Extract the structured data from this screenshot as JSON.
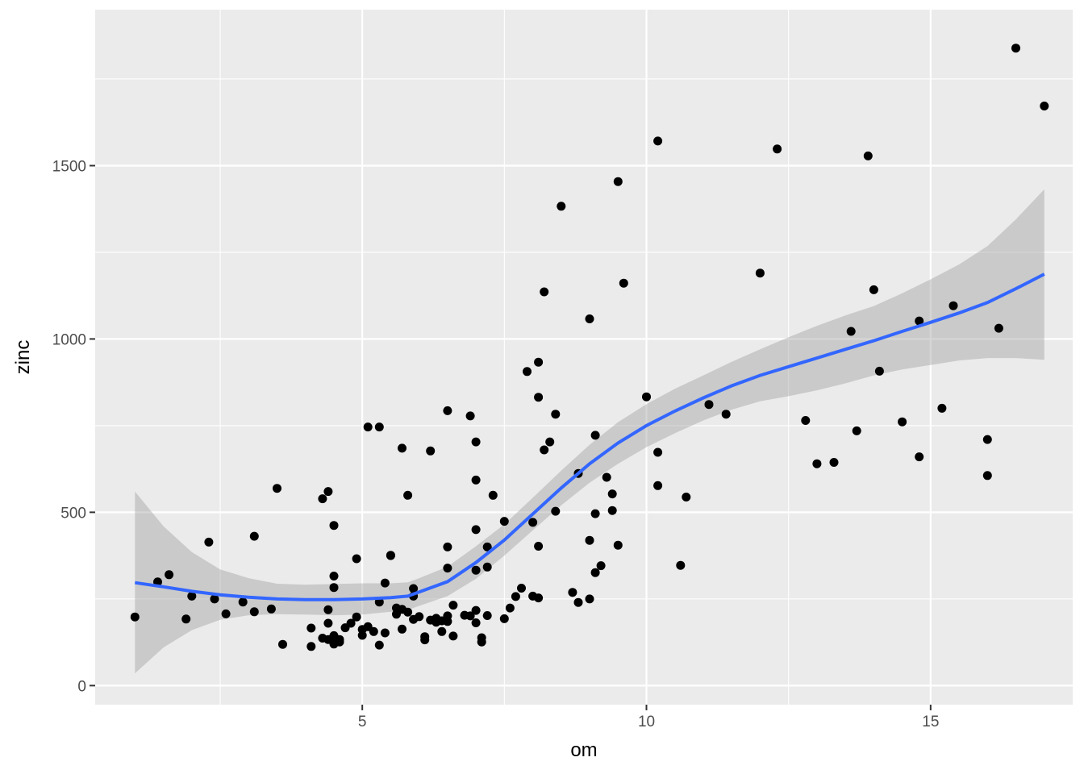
{
  "chart_data": {
    "type": "scatter",
    "title": "",
    "xlabel": "om",
    "ylabel": "zinc",
    "xlim": [
      0.3,
      17.5
    ],
    "ylim": [
      -55,
      1950
    ],
    "x_ticks": [
      5,
      10,
      15
    ],
    "x_tick_labels": [
      "5",
      "10",
      "15"
    ],
    "y_ticks": [
      0,
      500,
      1000,
      1500
    ],
    "y_tick_labels": [
      "0",
      "500",
      "1000",
      "1500"
    ],
    "grid": true,
    "legend": "none",
    "colors": {
      "panel_background": "#ebebeb",
      "grid": "#ffffff",
      "points": "#000000",
      "smooth_line": "#3366ff",
      "confidence_band": "#999999"
    },
    "points": [
      [
        1.0,
        198
      ],
      [
        1.4,
        299
      ],
      [
        1.6,
        320
      ],
      [
        1.9,
        192
      ],
      [
        2.0,
        258
      ],
      [
        2.3,
        414
      ],
      [
        2.4,
        250
      ],
      [
        2.6,
        207
      ],
      [
        2.9,
        241
      ],
      [
        3.1,
        431
      ],
      [
        3.1,
        213
      ],
      [
        3.4,
        221
      ],
      [
        3.5,
        569
      ],
      [
        3.6,
        119
      ],
      [
        4.1,
        166
      ],
      [
        4.1,
        113
      ],
      [
        4.3,
        539
      ],
      [
        4.3,
        137
      ],
      [
        4.4,
        560
      ],
      [
        4.4,
        219
      ],
      [
        4.4,
        180
      ],
      [
        4.4,
        133
      ],
      [
        4.5,
        462
      ],
      [
        4.5,
        316
      ],
      [
        4.5,
        283
      ],
      [
        4.5,
        144
      ],
      [
        4.5,
        120
      ],
      [
        4.6,
        126
      ],
      [
        4.6,
        133
      ],
      [
        4.7,
        167
      ],
      [
        4.8,
        180
      ],
      [
        4.9,
        366
      ],
      [
        4.9,
        198
      ],
      [
        5.0,
        162
      ],
      [
        5.0,
        145
      ],
      [
        5.1,
        746
      ],
      [
        5.1,
        170
      ],
      [
        5.2,
        156
      ],
      [
        5.3,
        746
      ],
      [
        5.3,
        241
      ],
      [
        5.3,
        117
      ],
      [
        5.4,
        296
      ],
      [
        5.4,
        152
      ],
      [
        5.5,
        375
      ],
      [
        5.5,
        376
      ],
      [
        5.6,
        224
      ],
      [
        5.6,
        206
      ],
      [
        5.7,
        685
      ],
      [
        5.7,
        220
      ],
      [
        5.7,
        163
      ],
      [
        5.8,
        549
      ],
      [
        5.8,
        212
      ],
      [
        5.9,
        280
      ],
      [
        5.9,
        258
      ],
      [
        5.9,
        191
      ],
      [
        6.0,
        199
      ],
      [
        6.1,
        141
      ],
      [
        6.1,
        132
      ],
      [
        6.2,
        677
      ],
      [
        6.2,
        189
      ],
      [
        6.3,
        194
      ],
      [
        6.3,
        183
      ],
      [
        6.4,
        187
      ],
      [
        6.4,
        156
      ],
      [
        6.5,
        793
      ],
      [
        6.5,
        400
      ],
      [
        6.5,
        339
      ],
      [
        6.5,
        201
      ],
      [
        6.5,
        185
      ],
      [
        6.6,
        232
      ],
      [
        6.6,
        143
      ],
      [
        6.8,
        203
      ],
      [
        6.9,
        778
      ],
      [
        6.9,
        201
      ],
      [
        7.0,
        703
      ],
      [
        7.0,
        593
      ],
      [
        7.0,
        450
      ],
      [
        7.0,
        333
      ],
      [
        7.0,
        217
      ],
      [
        7.0,
        181
      ],
      [
        7.1,
        138
      ],
      [
        7.1,
        126
      ],
      [
        7.2,
        400
      ],
      [
        7.2,
        342
      ],
      [
        7.2,
        202
      ],
      [
        7.3,
        549
      ],
      [
        7.5,
        474
      ],
      [
        7.5,
        193
      ],
      [
        7.6,
        224
      ],
      [
        7.7,
        257
      ],
      [
        7.8,
        281
      ],
      [
        7.9,
        906
      ],
      [
        8.0,
        471
      ],
      [
        8.0,
        258
      ],
      [
        8.1,
        933
      ],
      [
        8.1,
        832
      ],
      [
        8.1,
        402
      ],
      [
        8.1,
        253
      ],
      [
        8.2,
        1136
      ],
      [
        8.2,
        680
      ],
      [
        8.3,
        703
      ],
      [
        8.4,
        783
      ],
      [
        8.4,
        503
      ],
      [
        8.5,
        1383
      ],
      [
        8.7,
        269
      ],
      [
        8.8,
        612
      ],
      [
        8.8,
        240
      ],
      [
        9.0,
        1058
      ],
      [
        9.0,
        419
      ],
      [
        9.0,
        250
      ],
      [
        9.1,
        722
      ],
      [
        9.1,
        496
      ],
      [
        9.1,
        326
      ],
      [
        9.2,
        346
      ],
      [
        9.3,
        601
      ],
      [
        9.4,
        553
      ],
      [
        9.4,
        505
      ],
      [
        9.5,
        1454
      ],
      [
        9.5,
        405
      ],
      [
        9.6,
        1161
      ],
      [
        10.0,
        833
      ],
      [
        10.2,
        1571
      ],
      [
        10.2,
        673
      ],
      [
        10.2,
        577
      ],
      [
        10.6,
        347
      ],
      [
        10.7,
        544
      ],
      [
        11.1,
        811
      ],
      [
        11.4,
        783
      ],
      [
        12.0,
        1190
      ],
      [
        12.3,
        1548
      ],
      [
        12.8,
        765
      ],
      [
        13.0,
        640
      ],
      [
        13.3,
        644
      ],
      [
        13.6,
        1022
      ],
      [
        13.7,
        735
      ],
      [
        13.9,
        1528
      ],
      [
        14.0,
        1142
      ],
      [
        14.1,
        907
      ],
      [
        14.5,
        761
      ],
      [
        14.8,
        1052
      ],
      [
        14.8,
        660
      ],
      [
        15.2,
        800
      ],
      [
        15.4,
        1096
      ],
      [
        16.0,
        710
      ],
      [
        16.0,
        606
      ],
      [
        16.2,
        1031
      ],
      [
        16.5,
        1839
      ],
      [
        17.0,
        1672
      ]
    ],
    "smooth": {
      "x": [
        1.0,
        1.5,
        2.0,
        2.5,
        3.0,
        3.5,
        4.0,
        4.5,
        5.0,
        5.5,
        5.8,
        6.0,
        6.5,
        7.0,
        7.5,
        8.0,
        8.5,
        9.0,
        9.5,
        10.0,
        10.5,
        11.0,
        11.5,
        12.0,
        12.5,
        13.0,
        13.5,
        14.0,
        14.5,
        15.0,
        15.5,
        16.0,
        16.5,
        17.0
      ],
      "y": [
        297,
        285,
        272,
        262,
        255,
        250,
        248,
        248,
        250,
        254,
        258,
        270,
        300,
        355,
        420,
        495,
        570,
        640,
        700,
        750,
        792,
        830,
        865,
        895,
        920,
        945,
        970,
        995,
        1022,
        1048,
        1075,
        1105,
        1145,
        1187
      ],
      "lower": [
        35,
        110,
        160,
        190,
        203,
        206,
        205,
        203,
        205,
        213,
        218,
        230,
        258,
        308,
        375,
        448,
        520,
        585,
        640,
        688,
        728,
        765,
        796,
        820,
        835,
        852,
        872,
        895,
        912,
        925,
        938,
        945,
        945,
        940
      ],
      "upper": [
        560,
        460,
        385,
        335,
        310,
        294,
        291,
        293,
        295,
        295,
        298,
        310,
        343,
        402,
        465,
        542,
        620,
        695,
        760,
        812,
        856,
        895,
        934,
        970,
        1005,
        1038,
        1068,
        1095,
        1132,
        1172,
        1215,
        1268,
        1345,
        1432
      ]
    }
  }
}
